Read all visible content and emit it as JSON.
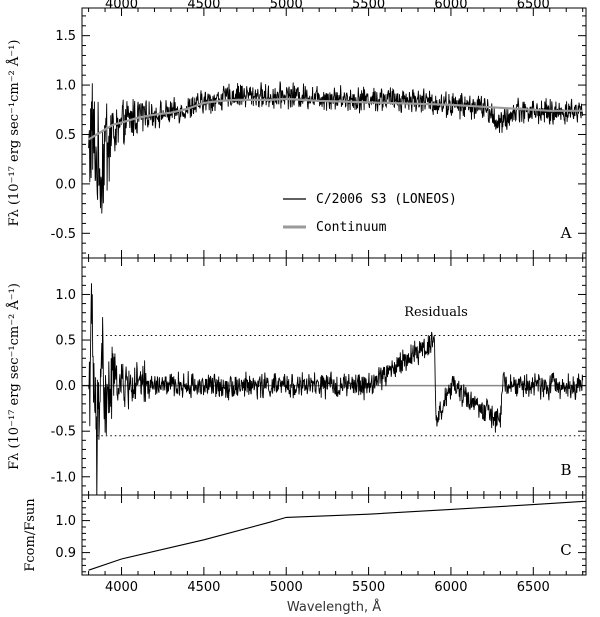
{
  "chart_data": [
    {
      "panel_id": "A",
      "type": "line",
      "panel_label": "A",
      "ylabel": "Fλ (10⁻¹⁷ erg sec⁻¹cm⁻² Å⁻¹)",
      "xlim": [
        3760,
        6820
      ],
      "ylim": [
        -0.75,
        1.78
      ],
      "xticks": [
        4000,
        4500,
        5000,
        5500,
        6000,
        6500
      ],
      "xtick_labels": [
        "4000",
        "4500",
        "5000",
        "5500",
        "6000",
        "6500"
      ],
      "yticks": [
        -0.5,
        0.0,
        0.5,
        1.0,
        1.5
      ],
      "ytick_labels": [
        "-0.5",
        "0.0",
        "0.5",
        "1.0",
        "1.5"
      ],
      "legend": [
        {
          "label": "C/2006 S3 (LONEOS)",
          "color": "#000000"
        },
        {
          "label": "Continuum",
          "color": "#9a9a9a"
        }
      ],
      "series": [
        {
          "name": "C/2006 S3 (LONEOS)",
          "color": "#000000",
          "noise_amp": 0.1,
          "x": [
            3800,
            3820,
            3850,
            3880,
            3900,
            3950,
            4000,
            4050,
            4100,
            4150,
            4200,
            4300,
            4400,
            4500,
            4600,
            4700,
            4800,
            4900,
            5000,
            5200,
            5400,
            5600,
            5800,
            5900,
            6000,
            6200,
            6300,
            6400,
            6600,
            6800
          ],
          "y": [
            0.3,
            0.55,
            0.2,
            0.1,
            0.4,
            0.5,
            0.58,
            0.65,
            0.7,
            0.7,
            0.7,
            0.72,
            0.76,
            0.83,
            0.86,
            0.9,
            0.9,
            0.88,
            0.9,
            0.88,
            0.86,
            0.86,
            0.85,
            0.82,
            0.8,
            0.78,
            0.6,
            0.75,
            0.72,
            0.74
          ]
        },
        {
          "name": "Continuum",
          "color": "#9a9a9a",
          "x": [
            3800,
            3850,
            3900,
            3950,
            4000,
            4100,
            4200,
            4300,
            4400,
            4500,
            4600,
            4700,
            4800,
            4900,
            5000,
            5200,
            5400,
            5600,
            5800,
            6000,
            6200,
            6400,
            6600,
            6800
          ],
          "y": [
            0.45,
            0.5,
            0.55,
            0.6,
            0.62,
            0.67,
            0.7,
            0.72,
            0.76,
            0.82,
            0.84,
            0.85,
            0.85,
            0.85,
            0.86,
            0.84,
            0.83,
            0.82,
            0.81,
            0.8,
            0.78,
            0.76,
            0.74,
            0.74
          ]
        }
      ]
    },
    {
      "panel_id": "B",
      "type": "line",
      "panel_label": "B",
      "ylabel": "Fλ (10⁻¹⁷ erg sec⁻¹cm⁻² Å⁻¹)",
      "annotation": "Residuals",
      "xlim": [
        3760,
        6820
      ],
      "ylim": [
        -1.2,
        1.4
      ],
      "yticks": [
        -1.0,
        -0.5,
        0.0,
        0.5,
        1.0
      ],
      "ytick_labels": [
        "-1.0",
        "-0.5",
        "0.0",
        "0.5",
        "1.0"
      ],
      "reference_lines": [
        0.55,
        -0.55
      ],
      "zero_line": 0.0,
      "series": [
        {
          "name": "Residuals",
          "color": "#000000",
          "noise_amp": 0.11,
          "x": [
            3800,
            3820,
            3850,
            3880,
            3900,
            3950,
            4000,
            4200,
            4500,
            5000,
            5500,
            5900,
            5910,
            6000,
            6300,
            6310,
            6500,
            6800
          ],
          "y": [
            0.0,
            0.6,
            -0.8,
            0.5,
            -0.3,
            0.1,
            0.0,
            0.0,
            0.0,
            0.0,
            0.0,
            0.5,
            -0.4,
            0.0,
            -0.4,
            0.0,
            0.0,
            0.0
          ]
        }
      ]
    },
    {
      "panel_id": "C",
      "type": "line",
      "panel_label": "C",
      "ylabel": "Fcom/Fsun",
      "xlabel": "Wavelength, Å",
      "xlim": [
        3760,
        6820
      ],
      "ylim": [
        0.83,
        1.08
      ],
      "xticks": [
        4000,
        4500,
        5000,
        5500,
        6000,
        6500
      ],
      "xtick_labels": [
        "4000",
        "4500",
        "5000",
        "5500",
        "6000",
        "6500"
      ],
      "yticks": [
        0.9,
        1.0
      ],
      "ytick_labels": [
        "0.9",
        "1.0"
      ],
      "series": [
        {
          "name": "Fcom/Fsun",
          "color": "#000000",
          "x": [
            3800,
            4000,
            4500,
            4900,
            5000,
            5500,
            6000,
            6500,
            6800
          ],
          "y": [
            0.845,
            0.88,
            0.94,
            0.995,
            1.01,
            1.02,
            1.035,
            1.05,
            1.06
          ]
        }
      ]
    }
  ]
}
